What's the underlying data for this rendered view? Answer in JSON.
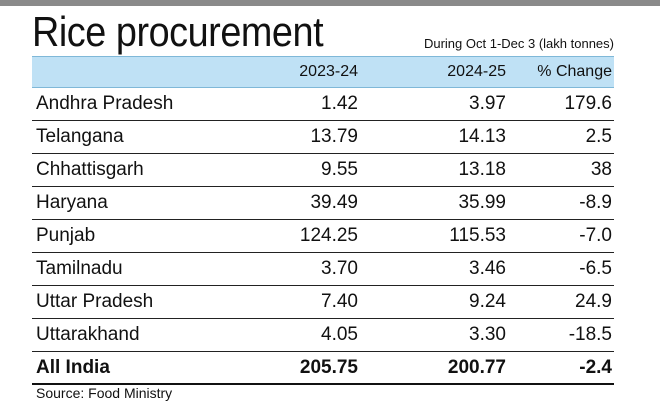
{
  "title": "Rice procurement",
  "subtitle": "During Oct 1-Dec 3 (lakh tonnes)",
  "source": "Source: Food Ministry",
  "colors": {
    "header_bg": "#bfe1f5",
    "top_bar": "#8a8a8a"
  },
  "chart_data": {
    "type": "table",
    "title": "Rice procurement",
    "subtitle": "During Oct 1-Dec 3 (lakh tonnes)",
    "columns": [
      "",
      "2023-24",
      "2024-25",
      "% Change"
    ],
    "rows": [
      {
        "state": "Andhra Pradesh",
        "y2023": "1.42",
        "y2024": "3.97",
        "change": "179.6"
      },
      {
        "state": "Telangana",
        "y2023": "13.79",
        "y2024": "14.13",
        "change": "2.5"
      },
      {
        "state": "Chhattisgarh",
        "y2023": "9.55",
        "y2024": "13.18",
        "change": "38"
      },
      {
        "state": "Haryana",
        "y2023": "39.49",
        "y2024": "35.99",
        "change": "-8.9"
      },
      {
        "state": "Punjab",
        "y2023": "124.25",
        "y2024": "115.53",
        "change": "-7.0"
      },
      {
        "state": "Tamilnadu",
        "y2023": "3.70",
        "y2024": "3.46",
        "change": "-6.5"
      },
      {
        "state": "Uttar Pradesh",
        "y2023": "7.40",
        "y2024": "9.24",
        "change": "24.9"
      },
      {
        "state": "Uttarakhand",
        "y2023": "4.05",
        "y2024": "3.30",
        "change": "-18.5"
      }
    ],
    "total": {
      "state": "All India",
      "y2023": "205.75",
      "y2024": "200.77",
      "change": "-2.4"
    }
  }
}
